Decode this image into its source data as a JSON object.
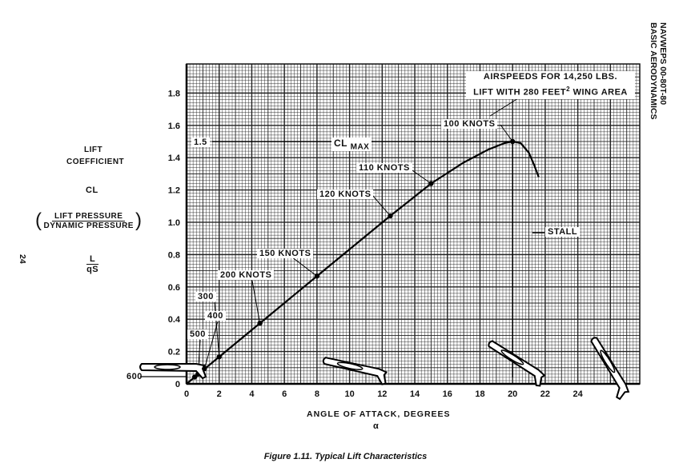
{
  "header": {
    "line1": "NAVWEPS 00-80T-80",
    "line2": "BASIC AERODYNAMICS"
  },
  "page_number": "24",
  "caption": "Figure 1.11. Typical Lift Characteristics",
  "y_axis_label": {
    "line1": "LIFT",
    "line2": "COEFFICIENT",
    "symbol": "CL",
    "ratio_num": "LIFT PRESSURE",
    "ratio_den": "DYNAMIC PRESSURE",
    "formula_num": "L",
    "formula_den": "qS"
  },
  "chart_data": {
    "type": "line",
    "title": "Typical Lift Characteristics",
    "xlabel": "ANGLE OF ATTACK, DEGREES",
    "xlabel_symbol": "α",
    "ylabel": "LIFT COEFFICIENT CL",
    "xlim": [
      0,
      27.8
    ],
    "ylim": [
      0,
      1.98
    ],
    "grid": true,
    "x_ticks": [
      "0",
      "2",
      "4",
      "6",
      "8",
      "10",
      "12",
      "14",
      "16",
      "18",
      "20",
      "22",
      "24"
    ],
    "y_ticks": [
      "0",
      "0.2",
      "0.4",
      "0.6",
      "0.8",
      "1.0",
      "1.2",
      "1.4",
      "1.6",
      "1.8"
    ],
    "series": [
      {
        "name": "CL vs alpha",
        "x": [
          0,
          2,
          4.5,
          8,
          12.5,
          15,
          17,
          18.5,
          19.5,
          20,
          20.5,
          21,
          21.3,
          21.6
        ],
        "y": [
          0,
          0.167,
          0.375,
          0.667,
          1.04,
          1.24,
          1.37,
          1.45,
          1.49,
          1.5,
          1.49,
          1.43,
          1.36,
          1.28
        ]
      }
    ],
    "points": [
      {
        "label": "600",
        "x": 0.5,
        "y": 0.042
      },
      {
        "label": "500",
        "x": 0.7,
        "y": 0.06
      },
      {
        "label": "400",
        "x": 1.1,
        "y": 0.094
      },
      {
        "label": "300",
        "x": 2.0,
        "y": 0.167
      },
      {
        "label": "200 KNOTS",
        "x": 4.5,
        "y": 0.375
      },
      {
        "label": "150 KNOTS",
        "x": 8.0,
        "y": 0.667
      },
      {
        "label": "120 KNOTS",
        "x": 12.5,
        "y": 1.04
      },
      {
        "label": "110 KNOTS",
        "x": 15.0,
        "y": 1.24
      },
      {
        "label": "100 KNOTS",
        "x": 20.0,
        "y": 1.5
      }
    ],
    "annotations": {
      "clmax_value": "1.5",
      "clmax_label": "CL",
      "clmax_sub": "MAX",
      "stall": "STALL",
      "airspeeds_line1": "AIRSPEEDS FOR 14,250 LBS.",
      "airspeeds_line2a": "LIFT WITH 280 FEET",
      "airspeeds_sup": "2",
      "airspeeds_line2b": " WING AREA"
    }
  }
}
